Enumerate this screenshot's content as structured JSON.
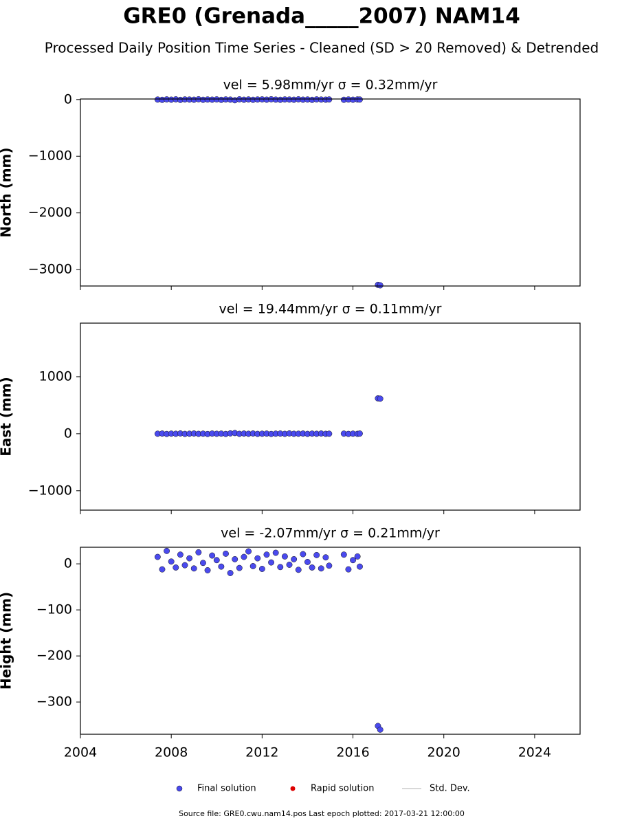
{
  "title": "GRE0 (Grenada_____2007) NAM14",
  "subtitle": "Processed Daily Position Time Series - Cleaned (SD > 20 Removed) & Detrended",
  "legend": [
    {
      "name": "Final solution",
      "color": "#4a4aee",
      "marker": "circle"
    },
    {
      "name": "Rapid solution",
      "color": "#dd0000",
      "marker": "dot"
    },
    {
      "name": "Std. Dev.",
      "color": "#cccccc",
      "marker": "line"
    }
  ],
  "footer": "Source file: GRE0.cwu.nam14.pos  Last epoch plotted: 2017-03-21 12:00:00",
  "chart_data": [
    {
      "type": "scatter",
      "title": "vel = 5.98mm/yr   σ = 0.32mm/yr",
      "ylabel": "North (mm)",
      "color": "#4a4aee",
      "x": [
        2007.4,
        2007.6,
        2007.8,
        2008.0,
        2008.2,
        2008.4,
        2008.6,
        2008.8,
        2009.0,
        2009.2,
        2009.4,
        2009.6,
        2009.8,
        2010.0,
        2010.2,
        2010.4,
        2010.6,
        2010.8,
        2011.0,
        2011.2,
        2011.4,
        2011.6,
        2011.8,
        2012.0,
        2012.2,
        2012.4,
        2012.6,
        2012.8,
        2013.0,
        2013.2,
        2013.4,
        2013.6,
        2013.8,
        2014.0,
        2014.2,
        2014.4,
        2014.6,
        2014.8,
        2014.95,
        2015.6,
        2015.8,
        2016.0,
        2016.2,
        2016.3,
        2017.1,
        2017.2
      ],
      "values": [
        0,
        -5,
        3,
        -2,
        4,
        -6,
        2,
        0,
        -3,
        5,
        -4,
        1,
        -2,
        3,
        -5,
        2,
        -1,
        -12,
        4,
        -3,
        2,
        -4,
        1,
        3,
        -2,
        5,
        -1,
        -4,
        2,
        0,
        -3,
        4,
        -2,
        1,
        -5,
        3,
        0,
        -2,
        2,
        -4,
        1,
        -3,
        2,
        0,
        -3270,
        -3278
      ],
      "xlim": [
        2004,
        2026
      ],
      "xticks": [
        2004,
        2008,
        2012,
        2016,
        2020,
        2024
      ],
      "ylim": [
        -3290,
        10
      ],
      "yticks": [
        0,
        {
          "value": -1000,
          "label": "−1000"
        },
        {
          "value": -2000,
          "label": "−2000"
        },
        {
          "value": -3000,
          "label": "−3000"
        }
      ]
    },
    {
      "type": "scatter",
      "title": "vel = 19.44mm/yr   σ = 0.11mm/yr",
      "ylabel": "East (mm)",
      "color": "#4a4aee",
      "x": [
        2007.4,
        2007.6,
        2007.8,
        2008.0,
        2008.2,
        2008.4,
        2008.6,
        2008.8,
        2009.0,
        2009.2,
        2009.4,
        2009.6,
        2009.8,
        2010.0,
        2010.2,
        2010.4,
        2010.6,
        2010.8,
        2011.0,
        2011.2,
        2011.4,
        2011.6,
        2011.8,
        2012.0,
        2012.2,
        2012.4,
        2012.6,
        2012.8,
        2013.0,
        2013.2,
        2013.4,
        2013.6,
        2013.8,
        2014.0,
        2014.2,
        2014.4,
        2014.6,
        2014.8,
        2014.95,
        2015.6,
        2015.8,
        2016.0,
        2016.2,
        2016.3,
        2017.1,
        2017.2
      ],
      "values": [
        0,
        3,
        -4,
        2,
        -1,
        5,
        -3,
        0,
        4,
        -2,
        1,
        -5,
        3,
        -1,
        2,
        -4,
        6,
        12,
        -2,
        3,
        -1,
        4,
        -3,
        0,
        2,
        -4,
        1,
        3,
        -2,
        5,
        -1,
        0,
        3,
        -3,
        2,
        -1,
        4,
        -2,
        0,
        2,
        -3,
        1,
        -2,
        3,
        620,
        615
      ],
      "xlim": [
        2004,
        2026
      ],
      "xticks": [
        2004,
        2008,
        2012,
        2016,
        2020,
        2024
      ],
      "ylim": [
        -1340,
        1940
      ],
      "yticks": [
        1000,
        0,
        {
          "value": -1000,
          "label": "−1000"
        }
      ]
    },
    {
      "type": "scatter",
      "title": "vel = -2.07mm/yr   σ = 0.21mm/yr",
      "ylabel": "Height (mm)",
      "color": "#4a4aee",
      "x": [
        2007.4,
        2007.6,
        2007.8,
        2008.0,
        2008.2,
        2008.4,
        2008.6,
        2008.8,
        2009.0,
        2009.2,
        2009.4,
        2009.6,
        2009.8,
        2010.0,
        2010.2,
        2010.4,
        2010.6,
        2010.8,
        2011.0,
        2011.2,
        2011.4,
        2011.6,
        2011.8,
        2012.0,
        2012.2,
        2012.4,
        2012.6,
        2012.8,
        2013.0,
        2013.2,
        2013.4,
        2013.6,
        2013.8,
        2014.0,
        2014.2,
        2014.4,
        2014.6,
        2014.8,
        2014.95,
        2015.6,
        2015.8,
        2016.0,
        2016.2,
        2016.3,
        2017.1,
        2017.2
      ],
      "values": [
        15,
        -12,
        28,
        5,
        -8,
        20,
        -3,
        12,
        -10,
        25,
        2,
        -14,
        18,
        8,
        -6,
        22,
        -20,
        10,
        -9,
        15,
        27,
        -5,
        12,
        -11,
        20,
        3,
        24,
        -7,
        16,
        -2,
        10,
        -13,
        21,
        4,
        -8,
        19,
        -10,
        14,
        -4,
        20,
        -12,
        8,
        16,
        -6,
        -352,
        -360
      ],
      "xlim": [
        2004,
        2026
      ],
      "xticks": [
        2004,
        2008,
        2012,
        2016,
        2020,
        2024
      ],
      "ylim": [
        -370,
        36
      ],
      "yticks": [
        0,
        {
          "value": -100,
          "label": "−100"
        },
        {
          "value": -200,
          "label": "−200"
        },
        {
          "value": -300,
          "label": "−300"
        }
      ]
    }
  ]
}
